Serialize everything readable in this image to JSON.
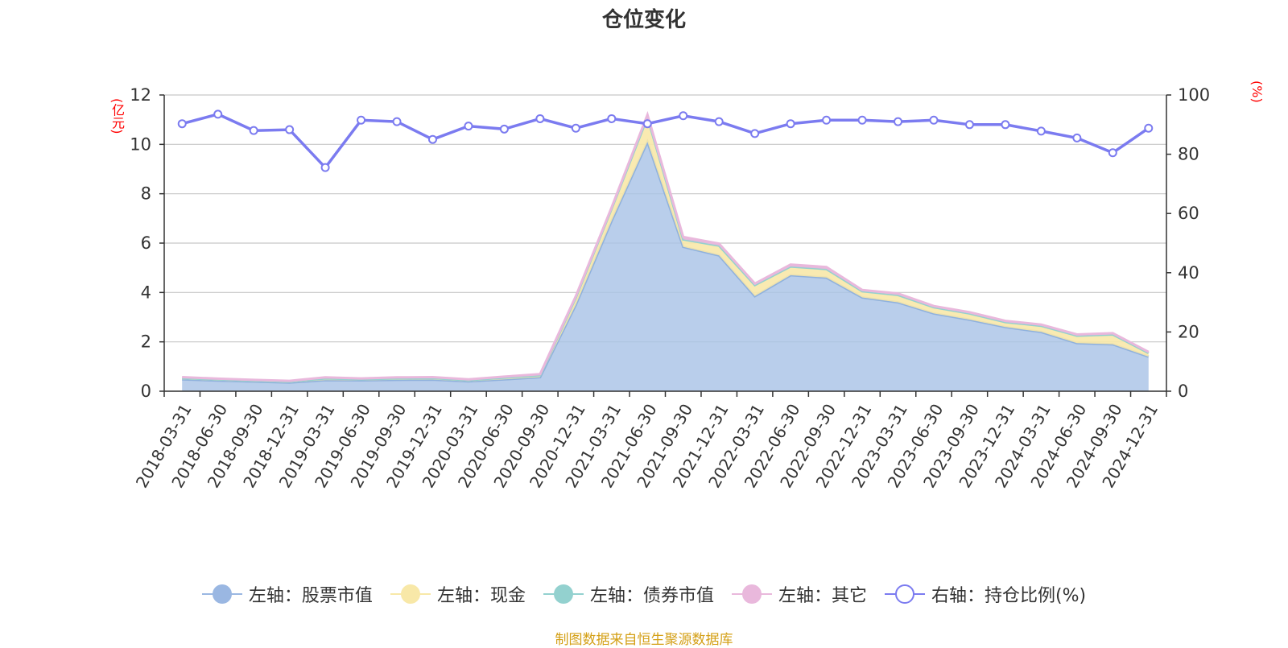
{
  "title": "仓位变化",
  "left_axis_label": "(亿元)",
  "right_axis_label": "(%)",
  "source": "制图数据来自恒生聚源数据库",
  "colors": {
    "stock": "#a9c3e6",
    "stock_line": "#8fb1dd",
    "cash": "#f8e8a8",
    "bond": "#93d1cf",
    "other": "#e9b8dc",
    "ratio": "#7b7bf0",
    "axis_label": "#ff0000",
    "source": "#d4a017"
  },
  "legend": [
    {
      "label": "左轴：股票市值",
      "icon": "filled-circle",
      "color": "#9ab7e2"
    },
    {
      "label": "左轴：现金",
      "icon": "filled-circle",
      "color": "#f8e8a8"
    },
    {
      "label": "左轴：债券市值",
      "icon": "filled-circle",
      "color": "#93d1cf"
    },
    {
      "label": "左轴：其它",
      "icon": "filled-circle",
      "color": "#e9b8dc"
    },
    {
      "label": "右轴：持仓比例(%)",
      "icon": "hollow-circle",
      "color": "#7b7bf0"
    }
  ],
  "chart_data": {
    "type": "area",
    "title": "仓位变化",
    "categories": [
      "2018-03-31",
      "2018-06-30",
      "2018-09-30",
      "2018-12-31",
      "2019-03-31",
      "2019-06-30",
      "2019-09-30",
      "2019-12-31",
      "2020-03-31",
      "2020-06-30",
      "2020-09-30",
      "2020-12-31",
      "2021-03-31",
      "2021-06-30",
      "2021-09-30",
      "2021-12-31",
      "2022-03-31",
      "2022-06-30",
      "2022-09-30",
      "2022-12-31",
      "2023-03-31",
      "2023-06-30",
      "2023-09-30",
      "2023-12-31",
      "2024-03-31",
      "2024-06-30",
      "2024-09-30",
      "2024-12-31"
    ],
    "y_left": {
      "label": "(亿元)",
      "min": 0,
      "max": 12,
      "ticks": [
        0,
        2,
        4,
        6,
        8,
        10,
        12
      ]
    },
    "y_right": {
      "label": "(%)",
      "min": 0,
      "max": 100,
      "ticks": [
        0,
        20,
        40,
        60,
        80,
        100
      ]
    },
    "grid": true,
    "legend_position": "bottom",
    "series": [
      {
        "name": "左轴：股票市值",
        "axis": "left",
        "stack": true,
        "values": [
          0.48,
          0.43,
          0.39,
          0.35,
          0.45,
          0.44,
          0.46,
          0.47,
          0.4,
          0.48,
          0.57,
          3.5,
          6.9,
          10.1,
          5.85,
          5.5,
          3.85,
          4.7,
          4.6,
          3.8,
          3.6,
          3.15,
          2.9,
          2.6,
          2.4,
          1.95,
          1.9,
          1.4
        ]
      },
      {
        "name": "左轴：现金",
        "axis": "left",
        "stack": true,
        "values": [
          0.05,
          0.05,
          0.04,
          0.04,
          0.07,
          0.05,
          0.06,
          0.06,
          0.05,
          0.07,
          0.08,
          0.3,
          0.5,
          1.0,
          0.3,
          0.4,
          0.45,
          0.35,
          0.35,
          0.25,
          0.3,
          0.25,
          0.25,
          0.2,
          0.25,
          0.3,
          0.4,
          0.15
        ]
      },
      {
        "name": "左轴：债券市值",
        "axis": "left",
        "stack": true,
        "values": [
          0,
          0,
          0,
          0,
          0,
          0,
          0,
          0,
          0,
          0,
          0,
          0,
          0,
          0,
          0,
          0,
          0,
          0,
          0,
          0,
          0,
          0,
          0,
          0,
          0,
          0,
          0,
          0
        ]
      },
      {
        "name": "左轴：其它",
        "axis": "left",
        "stack": true,
        "values": [
          0.04,
          0.03,
          0.03,
          0.03,
          0.04,
          0.03,
          0.04,
          0.04,
          0.03,
          0.04,
          0.04,
          0.05,
          0.05,
          0.1,
          0.1,
          0.08,
          0.06,
          0.08,
          0.08,
          0.05,
          0.06,
          0.05,
          0.05,
          0.05,
          0.05,
          0.05,
          0.05,
          0.04
        ]
      },
      {
        "name": "右轴：持仓比例(%)",
        "axis": "right",
        "type": "line",
        "values": [
          90.3,
          93.5,
          88.0,
          88.3,
          75.5,
          91.5,
          91.0,
          85.0,
          89.5,
          88.5,
          92.0,
          88.8,
          92.0,
          90.3,
          93.0,
          91.0,
          87.0,
          90.3,
          91.5,
          91.5,
          91.0,
          91.5,
          90.0,
          90.0,
          87.8,
          85.5,
          80.5,
          88.8
        ]
      }
    ]
  }
}
